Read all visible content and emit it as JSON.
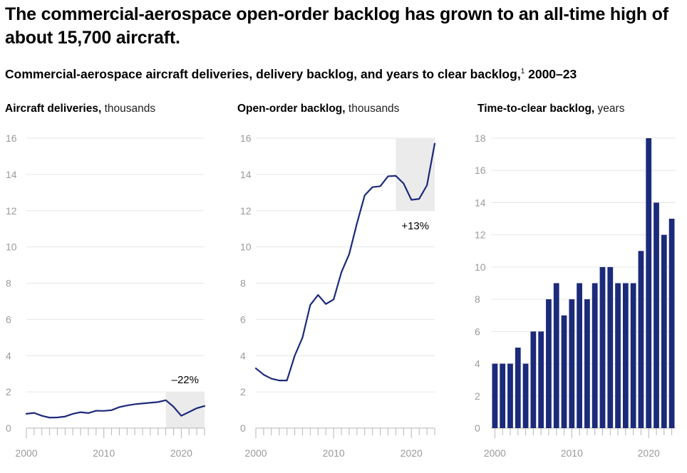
{
  "headline": "The commercial-aerospace open-order backlog has grown to an all-time high of about 15,700 aircraft.",
  "subtitle": {
    "text": "Commercial-aerospace aircraft deliveries, delivery backlog, and years to clear backlog,",
    "footnote": "1",
    "range": " 2000–23"
  },
  "colors": {
    "series": "#1c2a7a",
    "highlight_band": "#ebebeb",
    "grid": "#e6e6e6",
    "axis_text": "#9a9a9a"
  },
  "chart_data": [
    {
      "type": "line",
      "title_bold": "Aircraft deliveries,",
      "title_unit": " thousands",
      "x": [
        2000,
        2001,
        2002,
        2003,
        2004,
        2005,
        2006,
        2007,
        2008,
        2009,
        2010,
        2011,
        2012,
        2013,
        2014,
        2015,
        2016,
        2017,
        2018,
        2019,
        2020,
        2021,
        2022,
        2023
      ],
      "values": [
        0.79,
        0.84,
        0.68,
        0.58,
        0.59,
        0.64,
        0.79,
        0.88,
        0.83,
        0.96,
        0.95,
        0.99,
        1.16,
        1.25,
        1.32,
        1.36,
        1.4,
        1.44,
        1.54,
        1.18,
        0.68,
        0.89,
        1.1,
        1.22
      ],
      "xlim": [
        2000,
        2023
      ],
      "ylim": [
        0,
        16
      ],
      "yticks": [
        0,
        2,
        4,
        6,
        8,
        10,
        12,
        14,
        16
      ],
      "xtick_labels": [
        "2000",
        "2010",
        "2020"
      ],
      "highlight": {
        "from": 2018,
        "to": 2023,
        "ymax": 2
      },
      "annotation": "–22%",
      "grid": true
    },
    {
      "type": "line",
      "title_bold": "Open-order backlog,",
      "title_unit": " thousands",
      "x": [
        2000,
        2001,
        2002,
        2003,
        2004,
        2005,
        2006,
        2007,
        2008,
        2009,
        2010,
        2011,
        2012,
        2013,
        2014,
        2015,
        2016,
        2017,
        2018,
        2019,
        2020,
        2021,
        2022,
        2023
      ],
      "values": [
        3.3,
        2.95,
        2.73,
        2.63,
        2.63,
        4.0,
        5.0,
        6.8,
        7.35,
        6.85,
        7.1,
        8.6,
        9.6,
        11.3,
        12.85,
        13.3,
        13.35,
        13.9,
        13.92,
        13.5,
        12.6,
        12.65,
        13.4,
        15.7
      ],
      "xlim": [
        2000,
        2023
      ],
      "ylim": [
        0,
        16
      ],
      "yticks": [
        0,
        2,
        4,
        6,
        8,
        10,
        12,
        14,
        16
      ],
      "xtick_labels": [
        "2000",
        "2010",
        "2020"
      ],
      "highlight": {
        "from": 2018,
        "to": 2023,
        "ymin": 12,
        "ymax": 16
      },
      "annotation": "+13%",
      "grid": true
    },
    {
      "type": "bar",
      "title_bold": "Time-to-clear backlog,",
      "title_unit": " years",
      "x": [
        2000,
        2001,
        2002,
        2003,
        2004,
        2005,
        2006,
        2007,
        2008,
        2009,
        2010,
        2011,
        2012,
        2013,
        2014,
        2015,
        2016,
        2017,
        2018,
        2019,
        2020,
        2021,
        2022,
        2023
      ],
      "values": [
        4,
        4,
        4,
        5,
        4,
        6,
        6,
        8,
        9,
        7,
        8,
        9,
        8,
        9,
        10,
        10,
        9,
        9,
        9,
        11,
        18,
        14,
        12,
        13
      ],
      "xlim": [
        2000,
        2023
      ],
      "ylim": [
        0,
        18
      ],
      "yticks": [
        0,
        2,
        4,
        6,
        8,
        10,
        12,
        14,
        16,
        18
      ],
      "xtick_labels": [
        "2000",
        "2010",
        "2020"
      ],
      "grid": true
    }
  ]
}
